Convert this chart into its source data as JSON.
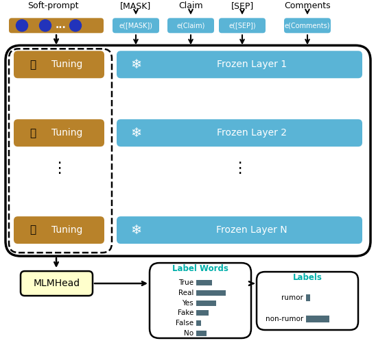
{
  "fig_width": 5.48,
  "fig_height": 5.04,
  "dpi": 100,
  "bg_color": "#ffffff",
  "blue_color": "#5AB4D6",
  "brown_color": "#B8822A",
  "teal_color": "#00AFAA",
  "dark_gray_color": "#4D6B78",
  "light_yellow": "#FFFFCC",
  "top_labels": [
    "[MASK]",
    "Claim",
    "[SEP]",
    "Comments"
  ],
  "embedding_labels": [
    "e([MASK])",
    "e(Claim)",
    "e([SEP])",
    "e(Comments)"
  ],
  "frozen_layers": [
    "Frozen Layer 1",
    "Frozen Layer 2",
    "Frozen Layer N"
  ],
  "label_words": [
    "True",
    "Real",
    "Yes",
    "Fake",
    "False",
    "No"
  ],
  "label_word_values": [
    0.42,
    0.78,
    0.52,
    0.32,
    0.12,
    0.28
  ],
  "final_labels": [
    "rumor",
    "non-rumor"
  ],
  "final_label_values": [
    0.1,
    0.62
  ]
}
